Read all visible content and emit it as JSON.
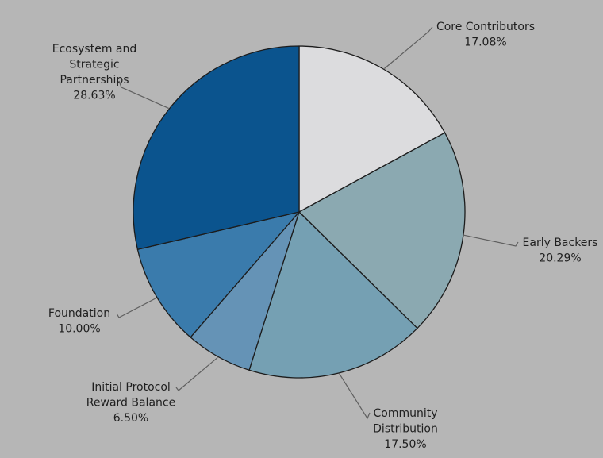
{
  "chart_data": {
    "type": "pie",
    "title": "",
    "start_angle": "12 o'clock",
    "direction": "clockwise",
    "slices": [
      {
        "name": "Core Contributors",
        "label_lines": [
          "Core Contributors"
        ],
        "value": 17.08,
        "value_label": "17.08%",
        "color": "#dcdcde",
        "label_side": "right"
      },
      {
        "name": "Early Backers",
        "label_lines": [
          "Early Backers"
        ],
        "value": 20.29,
        "value_label": "20.29%",
        "color": "#8ba9b1",
        "label_side": "right"
      },
      {
        "name": "Community Distribution",
        "label_lines": [
          "Community",
          "Distribution"
        ],
        "value": 17.5,
        "value_label": "17.50%",
        "color": "#75a0b3",
        "label_side": "right"
      },
      {
        "name": "Initial Protocol Reward Balance",
        "label_lines": [
          "Initial Protocol",
          "Reward Balance"
        ],
        "value": 6.5,
        "value_label": "6.50%",
        "color": "#6593b6",
        "label_side": "left"
      },
      {
        "name": "Foundation",
        "label_lines": [
          "Foundation"
        ],
        "value": 10.0,
        "value_label": "10.00%",
        "color": "#3a7bac",
        "label_side": "left"
      },
      {
        "name": "Ecosystem and Strategic Partnerships",
        "label_lines": [
          "Ecosystem and",
          "Strategic",
          "Partnerships"
        ],
        "value": 28.63,
        "value_label": "28.63%",
        "color": "#0b548e",
        "label_side": "left"
      }
    ]
  }
}
